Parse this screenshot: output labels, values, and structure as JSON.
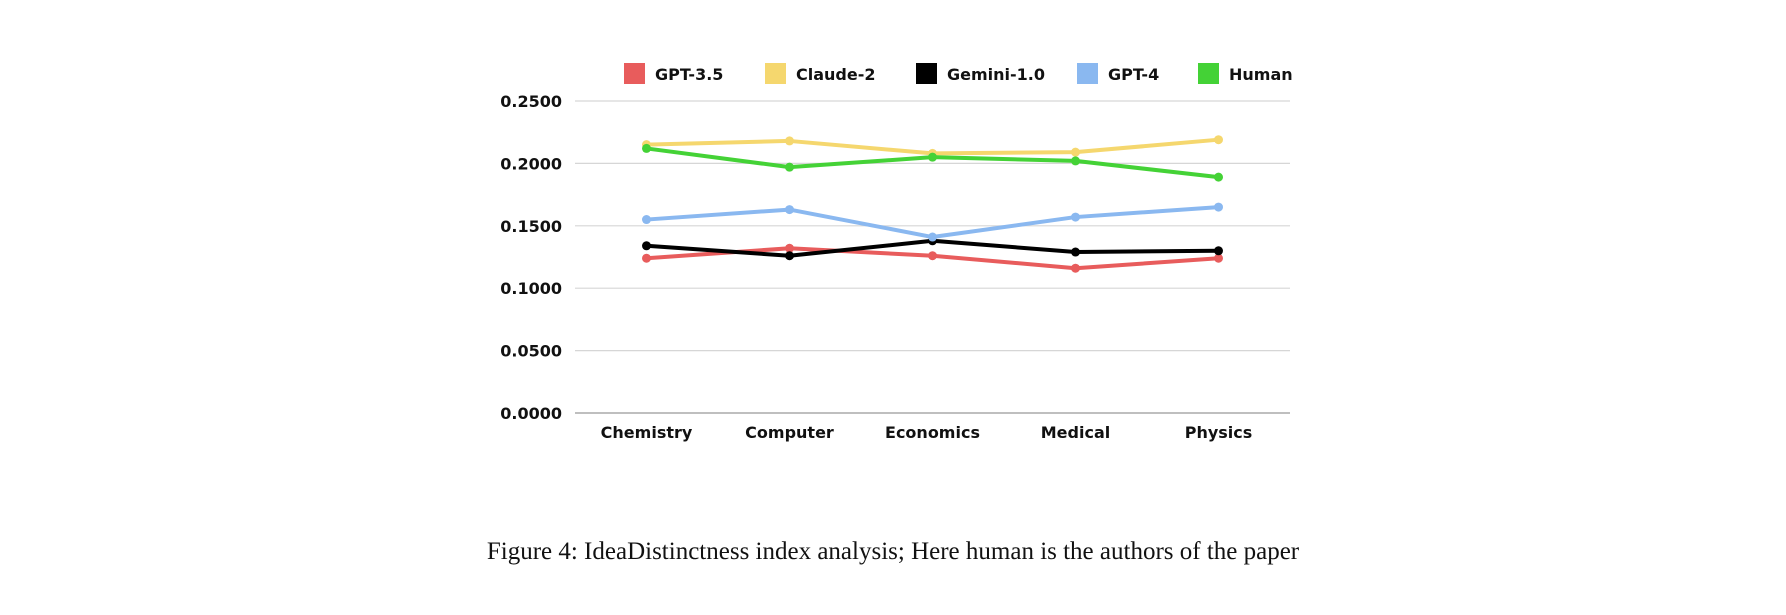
{
  "chart_data": {
    "type": "line",
    "categories": [
      "Chemistry",
      "Computer",
      "Economics",
      "Medical",
      "Physics"
    ],
    "ylim": [
      0,
      0.25
    ],
    "yticks": [
      "0.0000",
      "0.0500",
      "0.1000",
      "0.1500",
      "0.2000",
      "0.2500"
    ],
    "ytick_values": [
      0,
      0.05,
      0.1,
      0.15,
      0.2,
      0.25
    ],
    "grid": true,
    "legend_position": "top",
    "series": [
      {
        "name": "GPT-3.5",
        "color": "#e85c5c",
        "values": [
          0.124,
          0.132,
          0.126,
          0.116,
          0.124
        ]
      },
      {
        "name": "Claude-2",
        "color": "#f5d76e",
        "values": [
          0.215,
          0.218,
          0.208,
          0.209,
          0.219
        ]
      },
      {
        "name": "Gemini-1.0",
        "color": "#000000",
        "values": [
          0.134,
          0.126,
          0.138,
          0.129,
          0.13
        ]
      },
      {
        "name": "GPT-4",
        "color": "#8ab8f0",
        "values": [
          0.155,
          0.163,
          0.141,
          0.157,
          0.165
        ]
      },
      {
        "name": "Human",
        "color": "#44d236",
        "values": [
          0.212,
          0.197,
          0.205,
          0.202,
          0.189
        ]
      }
    ]
  },
  "caption": "Figure 4: IdeaDistinctness index analysis; Here human is the authors of the paper"
}
